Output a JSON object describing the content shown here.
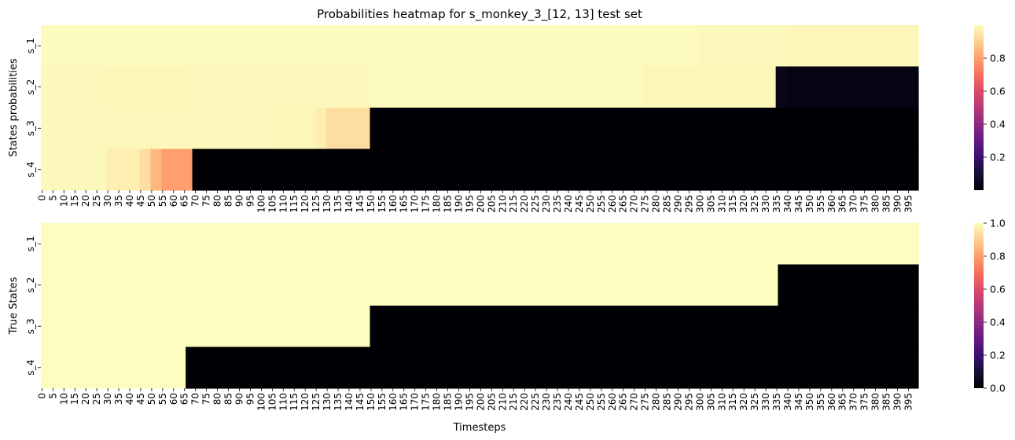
{
  "chart_data": [
    {
      "type": "heatmap",
      "title": "Probabilities heatmap for s_monkey_3_[12, 13] test set",
      "ylabel": "States probabilities",
      "xlabel": "",
      "rows": [
        "s_1",
        "s_2",
        "s_3",
        "s_4"
      ],
      "x_start": 0,
      "x_end": 399,
      "x_tick_step": 5,
      "colormap": "magma",
      "vmin": 0,
      "vmax": 1,
      "colorbar_ticks": [
        0.2,
        0.4,
        0.6,
        0.8
      ],
      "segments": [
        [
          {
            "from": 0,
            "to": 299,
            "value": 0.995
          },
          {
            "from": 300,
            "to": 339,
            "value": 0.99
          },
          {
            "from": 340,
            "to": 399,
            "value": 0.985
          }
        ],
        [
          {
            "from": 0,
            "to": 29,
            "value": 0.99
          },
          {
            "from": 30,
            "to": 64,
            "value": 0.985
          },
          {
            "from": 65,
            "to": 149,
            "value": 0.99
          },
          {
            "from": 150,
            "to": 274,
            "value": 0.995
          },
          {
            "from": 275,
            "to": 334,
            "value": 0.985
          },
          {
            "from": 335,
            "to": 339,
            "value": 0.04
          },
          {
            "from": 340,
            "to": 399,
            "value": 0.03
          }
        ],
        [
          {
            "from": 0,
            "to": 104,
            "value": 0.99
          },
          {
            "from": 105,
            "to": 124,
            "value": 0.985
          },
          {
            "from": 125,
            "to": 129,
            "value": 0.97
          },
          {
            "from": 130,
            "to": 149,
            "value": 0.93
          },
          {
            "from": 150,
            "to": 399,
            "value": 0.0
          }
        ],
        [
          {
            "from": 0,
            "to": 29,
            "value": 0.99
          },
          {
            "from": 30,
            "to": 44,
            "value": 0.97
          },
          {
            "from": 45,
            "to": 49,
            "value": 0.93
          },
          {
            "from": 50,
            "to": 54,
            "value": 0.85
          },
          {
            "from": 55,
            "to": 68,
            "value": 0.8
          },
          {
            "from": 69,
            "to": 399,
            "value": 0.0
          }
        ]
      ]
    },
    {
      "type": "heatmap",
      "title": "",
      "ylabel": "True States",
      "xlabel": "Timesteps",
      "rows": [
        "s_1",
        "s_2",
        "s_3",
        "s_4"
      ],
      "x_start": 0,
      "x_end": 399,
      "x_tick_step": 5,
      "colormap": "magma",
      "vmin": 0,
      "vmax": 1,
      "colorbar_ticks": [
        0.0,
        0.2,
        0.4,
        0.6,
        0.8,
        1.0
      ],
      "segments": [
        [
          {
            "from": 0,
            "to": 399,
            "value": 1
          }
        ],
        [
          {
            "from": 0,
            "to": 335,
            "value": 1
          },
          {
            "from": 336,
            "to": 399,
            "value": 0
          }
        ],
        [
          {
            "from": 0,
            "to": 149,
            "value": 1
          },
          {
            "from": 150,
            "to": 399,
            "value": 0
          }
        ],
        [
          {
            "from": 0,
            "to": 65,
            "value": 1
          },
          {
            "from": 66,
            "to": 399,
            "value": 0
          }
        ]
      ]
    }
  ]
}
